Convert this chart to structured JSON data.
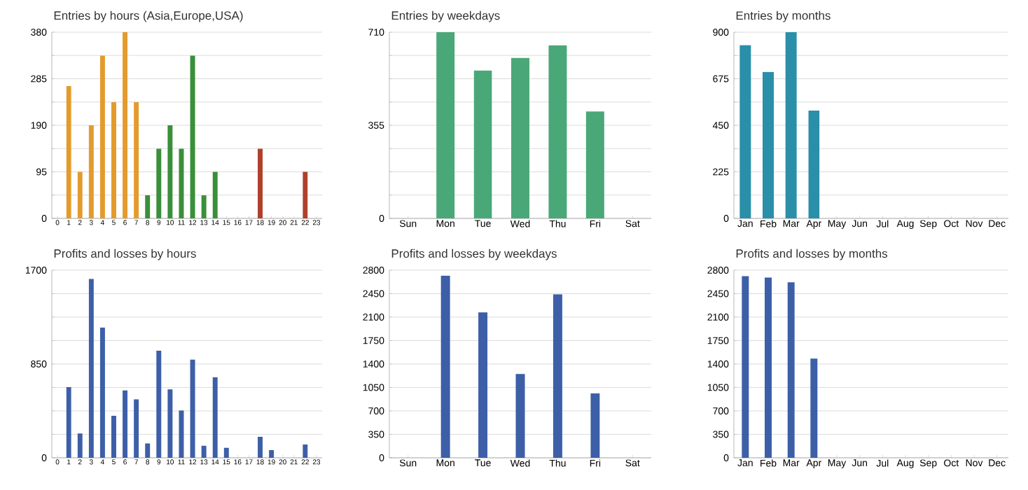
{
  "chart_data": [
    {
      "type": "bar",
      "title": "Entries by hours (Asia,Europe,USA)",
      "categories": [
        "0",
        "1",
        "2",
        "3",
        "4",
        "5",
        "6",
        "7",
        "8",
        "9",
        "10",
        "11",
        "12",
        "13",
        "14",
        "15",
        "16",
        "17",
        "18",
        "19",
        "20",
        "21",
        "22",
        "23"
      ],
      "values": [
        0,
        270,
        95,
        190,
        332,
        237,
        380,
        237,
        47,
        142,
        190,
        142,
        332,
        47,
        95,
        0,
        0,
        0,
        142,
        0,
        0,
        0,
        95,
        0
      ],
      "colors": [
        "#e39b2e",
        "#e39b2e",
        "#e39b2e",
        "#e39b2e",
        "#e39b2e",
        "#e39b2e",
        "#e39b2e",
        "#e39b2e",
        "#3a8f3a",
        "#3a8f3a",
        "#3a8f3a",
        "#3a8f3a",
        "#3a8f3a",
        "#3a8f3a",
        "#3a8f3a",
        "#b0402a",
        "#b0402a",
        "#b0402a",
        "#b0402a",
        "#b0402a",
        "#b0402a",
        "#b0402a",
        "#b0402a",
        "#b0402a"
      ],
      "ylim": [
        0,
        380
      ],
      "yticks": [
        0,
        {
          "value": 47.5,
          "label": null
        },
        95,
        {
          "value": 142.5,
          "label": null
        },
        190,
        {
          "value": 237.5,
          "label": null
        },
        285,
        {
          "value": 332.5,
          "label": null
        },
        380
      ],
      "grid": "y"
    },
    {
      "type": "bar",
      "title": "Entries by weekdays",
      "categories": [
        "Sun",
        "Mon",
        "Tue",
        "Wed",
        "Thu",
        "Fri",
        "Sat"
      ],
      "values": [
        0,
        710,
        564,
        612,
        660,
        408,
        0
      ],
      "color": "#4aa878",
      "ylim": [
        0,
        710
      ],
      "yticks": [
        0,
        {
          "value": 88.75,
          "label": null
        },
        {
          "value": 177.5,
          "label": null
        },
        {
          "value": 266.25,
          "label": null
        },
        355,
        {
          "value": 443.75,
          "label": null
        },
        {
          "value": 532.5,
          "label": null
        },
        {
          "value": 621.25,
          "label": null
        },
        710
      ],
      "grid": "y"
    },
    {
      "type": "bar",
      "title": "Entries by months",
      "categories": [
        "Jan",
        "Feb",
        "Mar",
        "Apr",
        "May",
        "Jun",
        "Jul",
        "Aug",
        "Sep",
        "Oct",
        "Nov",
        "Dec"
      ],
      "values": [
        837,
        708,
        900,
        521,
        0,
        0,
        0,
        0,
        0,
        0,
        0,
        0
      ],
      "color": "#2a8fa8",
      "ylim": [
        0,
        900
      ],
      "yticks": [
        0,
        {
          "value": 112.5,
          "label": null
        },
        225,
        {
          "value": 337.5,
          "label": null
        },
        450,
        {
          "value": 562.5,
          "label": null
        },
        675,
        {
          "value": 787.5,
          "label": null
        },
        900
      ],
      "grid": "y"
    },
    {
      "type": "bar",
      "title": "Profits and losses by hours",
      "categories": [
        "0",
        "1",
        "2",
        "3",
        "4",
        "5",
        "6",
        "7",
        "8",
        "9",
        "10",
        "11",
        "12",
        "13",
        "14",
        "15",
        "16",
        "17",
        "18",
        "19",
        "20",
        "21",
        "22",
        "23"
      ],
      "values": [
        0,
        640,
        220,
        1620,
        1180,
        380,
        610,
        530,
        130,
        970,
        620,
        430,
        890,
        110,
        730,
        90,
        0,
        0,
        190,
        70,
        0,
        0,
        120,
        0
      ],
      "color": "#3d5fa8",
      "ylim": [
        0,
        1700
      ],
      "yticks": [
        0,
        {
          "value": 212.5,
          "label": null
        },
        {
          "value": 425,
          "label": null
        },
        {
          "value": 637.5,
          "label": null
        },
        850,
        {
          "value": 1062.5,
          "label": null
        },
        {
          "value": 1275,
          "label": null
        },
        {
          "value": 1487.5,
          "label": null
        },
        1700
      ],
      "grid": "y"
    },
    {
      "type": "bar",
      "title": "Profits and losses by weekdays",
      "categories": [
        "Sun",
        "Mon",
        "Tue",
        "Wed",
        "Thu",
        "Fri",
        "Sat"
      ],
      "values": [
        0,
        2720,
        2170,
        1250,
        2440,
        960,
        0
      ],
      "color": "#3d5fa8",
      "ylim": [
        0,
        2800
      ],
      "yticks": [
        0,
        350,
        700,
        1050,
        1400,
        1750,
        2100,
        2450,
        2800
      ],
      "grid": "y"
    },
    {
      "type": "bar",
      "title": "Profits and losses by months",
      "categories": [
        "Jan",
        "Feb",
        "Mar",
        "Apr",
        "May",
        "Jun",
        "Jul",
        "Aug",
        "Sep",
        "Oct",
        "Nov",
        "Dec"
      ],
      "values": [
        2710,
        2690,
        2620,
        1480,
        0,
        0,
        0,
        0,
        0,
        0,
        0,
        0
      ],
      "color": "#3d5fa8",
      "ylim": [
        0,
        2800
      ],
      "yticks": [
        0,
        350,
        700,
        1050,
        1400,
        1750,
        2100,
        2450,
        2800
      ],
      "grid": "y"
    }
  ]
}
